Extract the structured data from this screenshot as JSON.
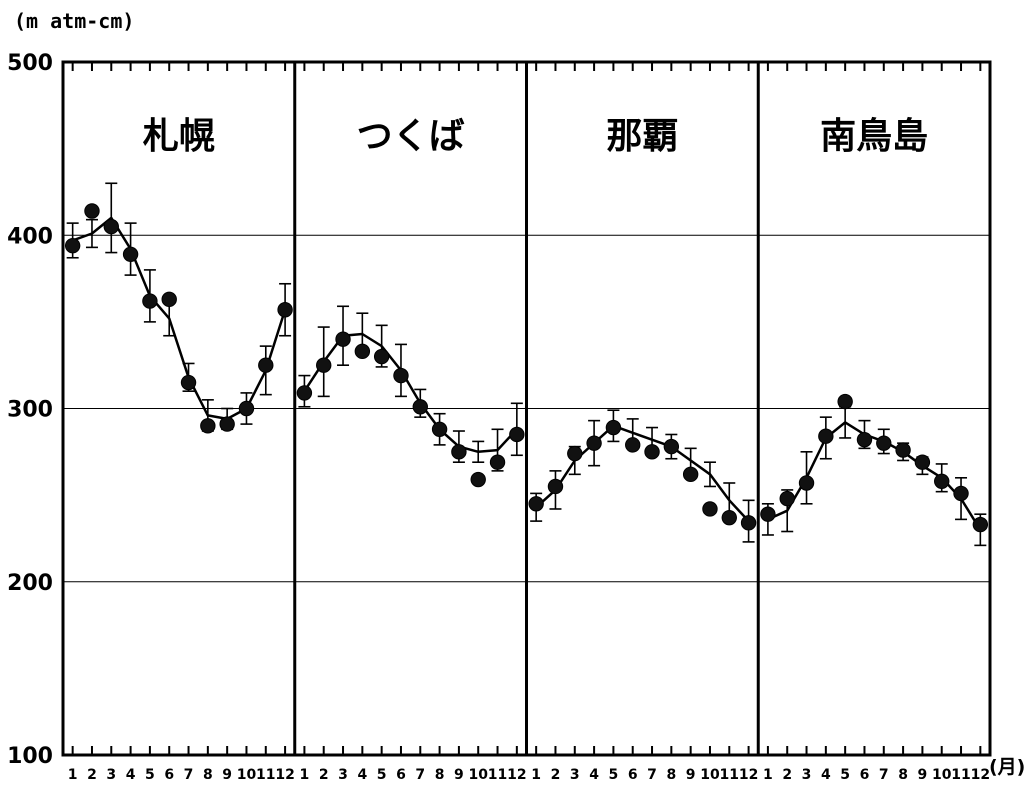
{
  "chart_data": {
    "type": "line",
    "ylabel": "(m atm-cm)",
    "xunit": "(月)",
    "ylim": [
      100,
      500
    ],
    "yticks": [
      100,
      200,
      300,
      400,
      500
    ],
    "grid_y": [
      200,
      300,
      400
    ],
    "x": [
      "1",
      "2",
      "3",
      "4",
      "5",
      "6",
      "7",
      "8",
      "9",
      "10",
      "11",
      "12"
    ],
    "panels": [
      {
        "title": "札幌",
        "mean": [
          397,
          401,
          410,
          392,
          365,
          352,
          318,
          296,
          294,
          300,
          322,
          357
        ],
        "error": [
          10,
          8,
          20,
          15,
          15,
          10,
          8,
          9,
          6,
          9,
          14,
          15
        ],
        "points": [
          394,
          414,
          405,
          389,
          362,
          363,
          315,
          290,
          291,
          300,
          325,
          357
        ]
      },
      {
        "title": "つくば",
        "mean": [
          310,
          327,
          342,
          343,
          336,
          322,
          303,
          288,
          278,
          275,
          276,
          288
        ],
        "error": [
          9,
          20,
          17,
          12,
          12,
          15,
          8,
          9,
          9,
          6,
          12,
          15
        ],
        "points": [
          309,
          325,
          340,
          333,
          330,
          319,
          301,
          288,
          275,
          259,
          269,
          285
        ]
      },
      {
        "title": "那覇",
        "mean": [
          243,
          253,
          270,
          280,
          290,
          286,
          282,
          278,
          270,
          262,
          247,
          235
        ],
        "error": [
          8,
          11,
          8,
          13,
          9,
          8,
          7,
          7,
          7,
          7,
          10,
          12
        ],
        "points": [
          245,
          255,
          274,
          280,
          289,
          279,
          275,
          278,
          262,
          242,
          237,
          234
        ]
      },
      {
        "title": "南鳥島",
        "mean": [
          236,
          241,
          260,
          283,
          292,
          285,
          281,
          275,
          267,
          260,
          248,
          230
        ],
        "error": [
          9,
          12,
          15,
          12,
          9,
          8,
          7,
          5,
          5,
          8,
          12,
          9
        ],
        "points": [
          239,
          248,
          257,
          284,
          304,
          282,
          280,
          276,
          269,
          258,
          251,
          233
        ]
      }
    ]
  }
}
